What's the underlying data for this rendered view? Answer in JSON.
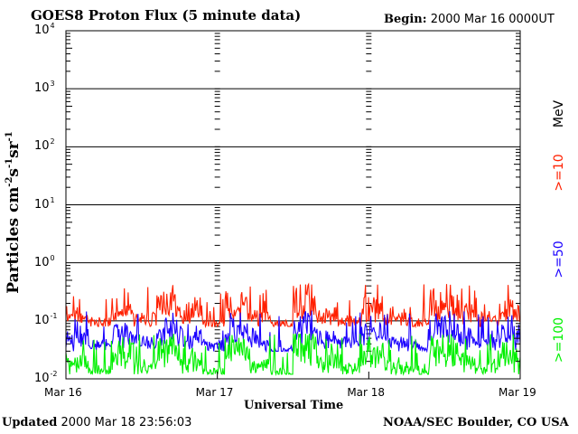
{
  "header": {
    "title": "GOES8 Proton Flux (5 minute data)",
    "begin_label": "Begin:",
    "begin_value": "2000 Mar 16 0000UT"
  },
  "footer": {
    "updated_label": "Updated",
    "updated_value": "2000 Mar 18 23:56:03",
    "credit": "NOAA/SEC Boulder, CO USA"
  },
  "colors": {
    "ge10": "#ff2000",
    "ge50": "#1a00ff",
    "ge100": "#00f000",
    "axis": "#000000",
    "background": "#ffffff"
  },
  "chart_data": {
    "type": "line",
    "title": "GOES8 Proton Flux (5 minute data)",
    "xlabel": "Universal Time",
    "ylabel_parts": {
      "base": "Particles cm",
      "e1": "-2",
      "s": "s",
      "e2": "-1",
      "sr": "sr",
      "e3": "-1"
    },
    "y_scale": "log",
    "ylim": [
      0.01,
      10000
    ],
    "y_ticks": [
      {
        "base": "10",
        "exp": "4"
      },
      {
        "base": "10",
        "exp": "3"
      },
      {
        "base": "10",
        "exp": "2"
      },
      {
        "base": "10",
        "exp": "1"
      },
      {
        "base": "10",
        "exp": "0"
      },
      {
        "base": "10",
        "exp": "-1"
      },
      {
        "base": "10",
        "exp": "-2"
      }
    ],
    "x_ticks": [
      "Mar 16",
      "Mar 17",
      "Mar 18",
      "Mar 19"
    ],
    "xlim": [
      "2000-03-16 00:00",
      "2000-03-19 00:00"
    ],
    "grid": "horizontal lines at each decade; dashed vertical markers at day boundaries",
    "units_label": "MeV",
    "series": [
      {
        "name": ">=10",
        "color": "#ff2000",
        "typical_range": [
          0.08,
          0.45
        ],
        "sample_values": [
          0.15,
          0.1,
          0.2,
          0.12,
          0.3,
          0.18,
          0.1,
          0.25,
          0.14,
          0.09,
          0.4,
          0.16,
          0.11,
          0.22,
          0.13,
          0.1,
          0.35,
          0.17,
          0.12,
          0.2
        ]
      },
      {
        "name": ">=50",
        "color": "#1a00ff",
        "typical_range": [
          0.03,
          0.15
        ],
        "sample_values": [
          0.06,
          0.04,
          0.08,
          0.05,
          0.12,
          0.07,
          0.04,
          0.1,
          0.05,
          0.03,
          0.15,
          0.06,
          0.05,
          0.09,
          0.05,
          0.04,
          0.11,
          0.07,
          0.05,
          0.08
        ]
      },
      {
        "name": ">=100",
        "color": "#00f000",
        "typical_range": [
          0.012,
          0.06
        ],
        "sample_values": [
          0.025,
          0.015,
          0.04,
          0.02,
          0.05,
          0.03,
          0.014,
          0.045,
          0.02,
          0.013,
          0.06,
          0.025,
          0.018,
          0.035,
          0.02,
          0.015,
          0.05,
          0.028,
          0.016,
          0.03
        ]
      }
    ]
  }
}
